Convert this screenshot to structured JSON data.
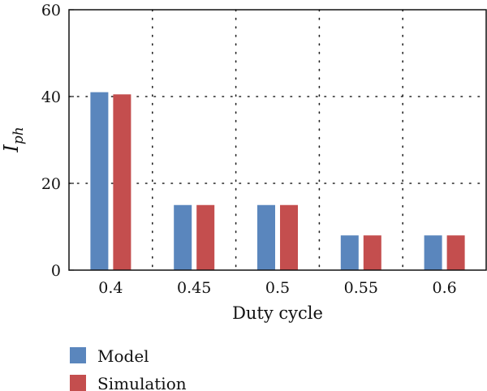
{
  "chart_data": {
    "type": "bar",
    "title": "",
    "xlabel": "Duty cycle",
    "ylabel_main": "I",
    "ylabel_sub": "ph",
    "categories": [
      "0.4",
      "0.45",
      "0.5",
      "0.55",
      "0.6"
    ],
    "series": [
      {
        "name": "Model",
        "values": [
          41,
          15,
          15,
          8,
          8
        ],
        "color": "#5a86bd"
      },
      {
        "name": "Simulation",
        "values": [
          40.5,
          15,
          15,
          8,
          8
        ],
        "color": "#c44e4e"
      }
    ],
    "ylim": [
      0,
      60
    ],
    "yticks": [
      "0",
      "20",
      "40",
      "60"
    ],
    "grid": "dotted",
    "legend_position": "bottom-left"
  }
}
